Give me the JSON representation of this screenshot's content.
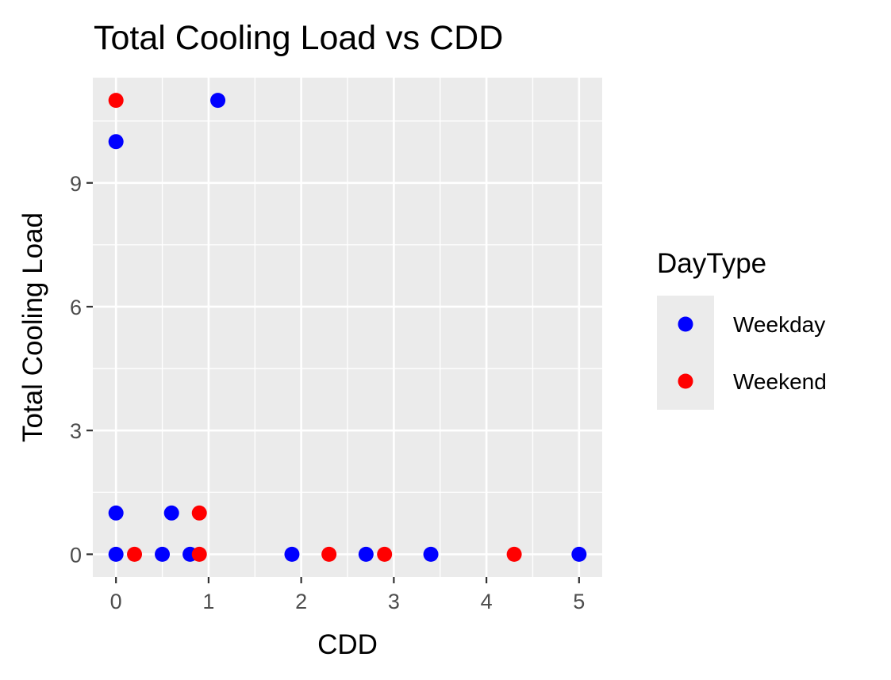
{
  "chart_data": {
    "type": "scatter",
    "title": "Total Cooling Load vs CDD",
    "xlabel": "CDD",
    "ylabel": "Total Cooling Load",
    "xlim": [
      -0.25,
      5.25
    ],
    "ylim": [
      -0.55,
      11.55
    ],
    "x_ticks": [
      0,
      1,
      2,
      3,
      4,
      5
    ],
    "x_minor_ticks": [
      0.5,
      1.5,
      2.5,
      3.5,
      4.5
    ],
    "y_ticks": [
      0,
      3,
      6,
      9
    ],
    "y_minor_ticks": [
      1.5,
      4.5,
      7.5,
      10.5
    ],
    "grid": true,
    "panel_background": "#ebebeb",
    "legend": {
      "title": "DayType",
      "position": "right",
      "background": "#ebebeb"
    },
    "series": [
      {
        "name": "Weekday",
        "color": "#0000ff",
        "points": [
          {
            "x": 0,
            "y": 10
          },
          {
            "x": 0,
            "y": 1
          },
          {
            "x": 0,
            "y": 0
          },
          {
            "x": 0.5,
            "y": 0
          },
          {
            "x": 0.6,
            "y": 1
          },
          {
            "x": 0.8,
            "y": 0
          },
          {
            "x": 1.1,
            "y": 11
          },
          {
            "x": 1.9,
            "y": 0
          },
          {
            "x": 2.7,
            "y": 0
          },
          {
            "x": 3.4,
            "y": 0
          },
          {
            "x": 5.0,
            "y": 0
          }
        ]
      },
      {
        "name": "Weekend",
        "color": "#ff0000",
        "points": [
          {
            "x": 0,
            "y": 11
          },
          {
            "x": 0.2,
            "y": 0
          },
          {
            "x": 0.9,
            "y": 1
          },
          {
            "x": 0.9,
            "y": 0
          },
          {
            "x": 2.3,
            "y": 0
          },
          {
            "x": 2.9,
            "y": 0
          },
          {
            "x": 4.3,
            "y": 0
          }
        ]
      }
    ]
  }
}
